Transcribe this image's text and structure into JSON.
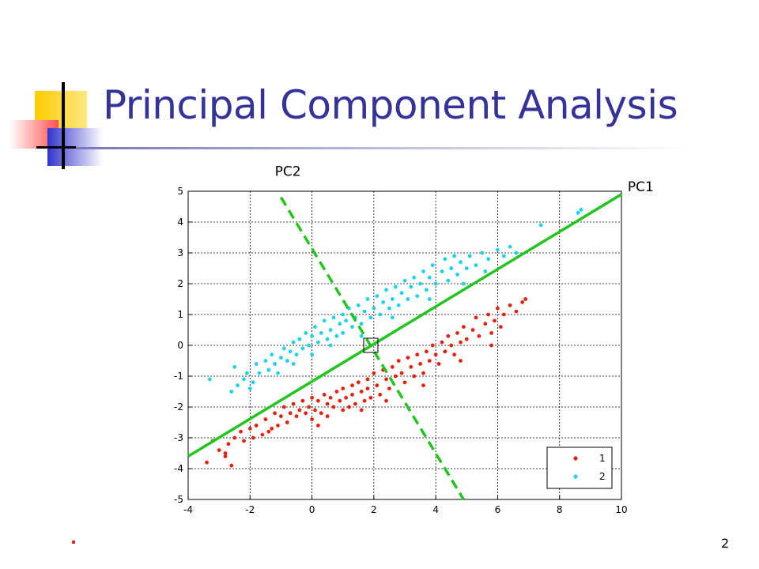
{
  "slide": {
    "title": "Principal Component Analysis",
    "page_number": "2"
  },
  "colors": {
    "title": "#333399",
    "class1": "#e8210f",
    "class2": "#17d3ec",
    "pc_lines": "#22c41e",
    "deco_yellow": "#ffcc00",
    "deco_red": "#ff5050",
    "deco_blue": "#3333cc"
  },
  "chart_data": {
    "type": "scatter",
    "xlim": [
      -4,
      10
    ],
    "ylim": [
      -5,
      5
    ],
    "xticks": [
      -4,
      -2,
      0,
      2,
      4,
      6,
      8,
      10
    ],
    "yticks": [
      -5,
      -4,
      -3,
      -2,
      -1,
      0,
      1,
      2,
      3,
      4,
      5
    ],
    "grid": true,
    "legend_position": "bottom-right",
    "series": [
      {
        "name": "1",
        "color": "#e8210f",
        "points": [
          [
            -3.4,
            -3.8
          ],
          [
            -3.2,
            -3.1
          ],
          [
            -3.0,
            -3.4
          ],
          [
            -2.8,
            -3.6
          ],
          [
            -2.7,
            -3.2
          ],
          [
            -2.6,
            -3.9
          ],
          [
            -2.5,
            -3.0
          ],
          [
            -2.3,
            -2.8
          ],
          [
            -2.2,
            -3.1
          ],
          [
            -2.0,
            -2.7
          ],
          [
            -1.9,
            -3.0
          ],
          [
            -1.8,
            -2.6
          ],
          [
            -1.6,
            -2.9
          ],
          [
            -1.5,
            -2.4
          ],
          [
            -1.3,
            -2.7
          ],
          [
            -1.2,
            -2.2
          ],
          [
            -1.1,
            -2.6
          ],
          [
            -1.0,
            -2.3
          ],
          [
            -0.9,
            -2.0
          ],
          [
            -0.8,
            -2.5
          ],
          [
            -0.7,
            -2.2
          ],
          [
            -0.6,
            -1.9
          ],
          [
            -0.5,
            -2.3
          ],
          [
            -0.4,
            -2.1
          ],
          [
            -0.3,
            -1.8
          ],
          [
            -0.2,
            -2.2
          ],
          [
            -0.1,
            -2.0
          ],
          [
            0.0,
            -1.7
          ],
          [
            0.0,
            -2.4
          ],
          [
            0.1,
            -2.1
          ],
          [
            0.2,
            -1.8
          ],
          [
            0.3,
            -2.2
          ],
          [
            0.4,
            -1.6
          ],
          [
            0.5,
            -1.9
          ],
          [
            0.5,
            -2.3
          ],
          [
            0.6,
            -1.7
          ],
          [
            0.7,
            -2.0
          ],
          [
            0.8,
            -1.5
          ],
          [
            0.9,
            -1.8
          ],
          [
            1.0,
            -2.1
          ],
          [
            1.0,
            -1.4
          ],
          [
            1.1,
            -1.7
          ],
          [
            1.2,
            -2.0
          ],
          [
            1.3,
            -1.3
          ],
          [
            1.3,
            -1.6
          ],
          [
            1.4,
            -1.9
          ],
          [
            1.5,
            -1.2
          ],
          [
            1.6,
            -1.5
          ],
          [
            1.7,
            -1.8
          ],
          [
            1.8,
            -1.1
          ],
          [
            1.8,
            -1.4
          ],
          [
            1.9,
            -1.7
          ],
          [
            2.0,
            -0.9
          ],
          [
            2.1,
            -1.3
          ],
          [
            2.2,
            -1.6
          ],
          [
            2.3,
            -0.8
          ],
          [
            2.4,
            -1.1
          ],
          [
            2.5,
            -1.4
          ],
          [
            2.6,
            -0.7
          ],
          [
            2.7,
            -1.0
          ],
          [
            2.8,
            -0.5
          ],
          [
            2.9,
            -0.9
          ],
          [
            3.0,
            -1.2
          ],
          [
            3.1,
            -0.4
          ],
          [
            3.2,
            -0.7
          ],
          [
            3.3,
            -1.0
          ],
          [
            3.4,
            -0.3
          ],
          [
            3.5,
            -0.6
          ],
          [
            3.6,
            -0.9
          ],
          [
            3.7,
            -0.2
          ],
          [
            3.8,
            -0.5
          ],
          [
            3.9,
            0.0
          ],
          [
            4.0,
            -0.3
          ],
          [
            4.1,
            -0.6
          ],
          [
            4.2,
            0.1
          ],
          [
            4.3,
            -0.2
          ],
          [
            4.4,
            0.3
          ],
          [
            4.5,
            0.0
          ],
          [
            4.6,
            -0.3
          ],
          [
            4.7,
            0.4
          ],
          [
            4.8,
            0.1
          ],
          [
            4.9,
            0.6
          ],
          [
            5.0,
            0.2
          ],
          [
            5.2,
            0.5
          ],
          [
            5.3,
            0.9
          ],
          [
            5.4,
            0.3
          ],
          [
            5.6,
            0.7
          ],
          [
            5.7,
            1.0
          ],
          [
            5.8,
            0.4
          ],
          [
            5.9,
            0.8
          ],
          [
            6.0,
            1.2
          ],
          [
            6.1,
            0.6
          ],
          [
            6.2,
            1.0
          ],
          [
            6.4,
            1.3
          ],
          [
            6.6,
            1.1
          ],
          [
            6.8,
            1.4
          ],
          [
            6.9,
            1.5
          ],
          [
            -2.8,
            -3.5
          ],
          [
            -1.4,
            -2.8
          ],
          [
            0.2,
            -2.6
          ],
          [
            1.6,
            -2.1
          ],
          [
            2.4,
            -1.8
          ],
          [
            3.6,
            -1.3
          ],
          [
            4.8,
            -0.5
          ],
          [
            5.8,
            0.0
          ]
        ]
      },
      {
        "name": "2",
        "color": "#17d3ec",
        "points": [
          [
            -3.3,
            -1.1
          ],
          [
            -2.6,
            -1.5
          ],
          [
            -2.5,
            -0.7
          ],
          [
            -2.4,
            -1.3
          ],
          [
            -2.2,
            -1.1
          ],
          [
            -2.1,
            -0.9
          ],
          [
            -1.9,
            -1.2
          ],
          [
            -1.8,
            -0.6
          ],
          [
            -1.7,
            -0.9
          ],
          [
            -1.5,
            -0.5
          ],
          [
            -1.4,
            -0.8
          ],
          [
            -1.3,
            -0.3
          ],
          [
            -1.2,
            -0.6
          ],
          [
            -1.1,
            -0.9
          ],
          [
            -1.0,
            -0.4
          ],
          [
            -0.9,
            -0.1
          ],
          [
            -0.8,
            -0.5
          ],
          [
            -0.7,
            -0.2
          ],
          [
            -0.6,
            0.1
          ],
          [
            -0.5,
            -0.3
          ],
          [
            -0.4,
            0.2
          ],
          [
            -0.3,
            -0.1
          ],
          [
            -0.2,
            0.4
          ],
          [
            -0.1,
            0.0
          ],
          [
            0.0,
            0.3
          ],
          [
            0.0,
            -0.3
          ],
          [
            0.1,
            0.6
          ],
          [
            0.2,
            0.1
          ],
          [
            0.3,
            0.4
          ],
          [
            0.4,
            0.8
          ],
          [
            0.5,
            0.2
          ],
          [
            0.6,
            0.5
          ],
          [
            0.7,
            0.9
          ],
          [
            0.8,
            0.3
          ],
          [
            0.9,
            0.7
          ],
          [
            1.0,
            1.0
          ],
          [
            1.0,
            0.4
          ],
          [
            1.1,
            0.8
          ],
          [
            1.2,
            1.2
          ],
          [
            1.3,
            0.6
          ],
          [
            1.4,
            0.9
          ],
          [
            1.5,
            1.3
          ],
          [
            1.6,
            0.7
          ],
          [
            1.7,
            1.1
          ],
          [
            1.8,
            1.5
          ],
          [
            1.9,
            0.9
          ],
          [
            2.0,
            1.2
          ],
          [
            2.1,
            1.6
          ],
          [
            2.2,
            1.0
          ],
          [
            2.3,
            1.4
          ],
          [
            2.4,
            1.8
          ],
          [
            2.5,
            1.2
          ],
          [
            2.6,
            1.5
          ],
          [
            2.7,
            1.9
          ],
          [
            2.8,
            1.3
          ],
          [
            2.9,
            1.7
          ],
          [
            3.0,
            2.1
          ],
          [
            3.1,
            1.5
          ],
          [
            3.2,
            1.9
          ],
          [
            3.3,
            2.2
          ],
          [
            3.4,
            1.6
          ],
          [
            3.5,
            2.0
          ],
          [
            3.6,
            2.4
          ],
          [
            3.7,
            1.8
          ],
          [
            3.8,
            2.2
          ],
          [
            3.9,
            2.6
          ],
          [
            4.0,
            2.0
          ],
          [
            4.2,
            2.4
          ],
          [
            4.3,
            2.8
          ],
          [
            4.4,
            2.1
          ],
          [
            4.5,
            2.5
          ],
          [
            4.6,
            2.9
          ],
          [
            4.7,
            2.3
          ],
          [
            4.8,
            2.7
          ],
          [
            5.0,
            2.5
          ],
          [
            5.1,
            2.9
          ],
          [
            5.3,
            2.6
          ],
          [
            5.5,
            3.0
          ],
          [
            5.7,
            2.8
          ],
          [
            6.0,
            3.1
          ],
          [
            6.2,
            2.9
          ],
          [
            6.4,
            3.2
          ],
          [
            6.6,
            3.0
          ],
          [
            7.4,
            3.9
          ],
          [
            8.6,
            4.3
          ],
          [
            8.7,
            4.4
          ],
          [
            -2.0,
            -1.4
          ],
          [
            -0.6,
            -0.6
          ],
          [
            0.6,
            0.0
          ],
          [
            1.6,
            0.3
          ],
          [
            2.6,
            0.9
          ],
          [
            3.8,
            1.5
          ],
          [
            4.9,
            2.0
          ],
          [
            5.6,
            2.4
          ]
        ]
      }
    ],
    "lines": [
      {
        "name": "PC1",
        "color": "#22c41e",
        "style": "solid",
        "x": [
          -4,
          10
        ],
        "y": [
          -3.6,
          4.9
        ]
      },
      {
        "name": "PC2",
        "color": "#22c41e",
        "style": "dashed",
        "x": [
          -1.0,
          4.9
        ],
        "y": [
          4.8,
          -5.0
        ]
      }
    ],
    "annotations": [
      {
        "text": "PC2",
        "x": -1.2,
        "y": 5.5
      },
      {
        "text": "PC1",
        "x": 10.2,
        "y": 5.0
      }
    ],
    "center_marker": {
      "x": 1.9,
      "y": 0.0
    }
  }
}
